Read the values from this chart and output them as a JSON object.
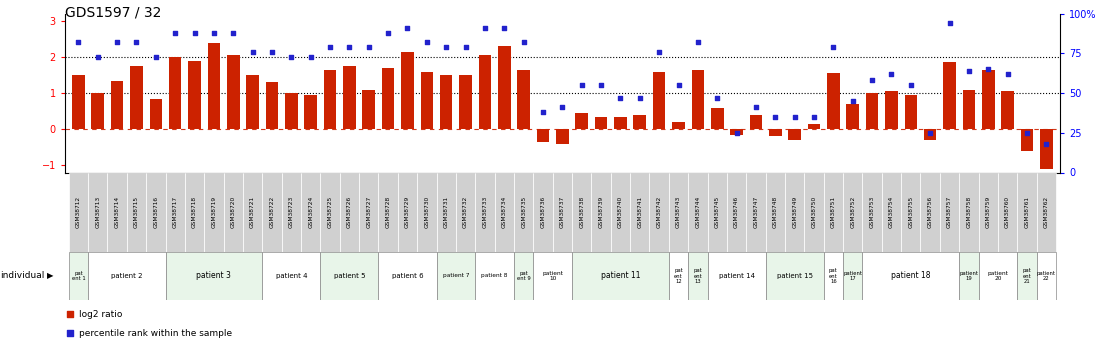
{
  "title": "GDS1597 / 32",
  "samples": [
    "GSM38712",
    "GSM38713",
    "GSM38714",
    "GSM38715",
    "GSM38716",
    "GSM38717",
    "GSM38718",
    "GSM38719",
    "GSM38720",
    "GSM38721",
    "GSM38722",
    "GSM38723",
    "GSM38724",
    "GSM38725",
    "GSM38726",
    "GSM38727",
    "GSM38728",
    "GSM38729",
    "GSM38730",
    "GSM38731",
    "GSM38732",
    "GSM38733",
    "GSM38734",
    "GSM38735",
    "GSM38736",
    "GSM38737",
    "GSM38738",
    "GSM38739",
    "GSM38740",
    "GSM38741",
    "GSM38742",
    "GSM38743",
    "GSM38744",
    "GSM38745",
    "GSM38746",
    "GSM38747",
    "GSM38748",
    "GSM38749",
    "GSM38750",
    "GSM38751",
    "GSM38752",
    "GSM38753",
    "GSM38754",
    "GSM38755",
    "GSM38756",
    "GSM38757",
    "GSM38758",
    "GSM38759",
    "GSM38760",
    "GSM38761",
    "GSM38762"
  ],
  "log2_ratio": [
    1.5,
    1.0,
    1.35,
    1.75,
    0.85,
    2.0,
    1.9,
    2.4,
    2.05,
    1.5,
    1.3,
    1.0,
    0.95,
    1.65,
    1.75,
    1.1,
    1.7,
    2.15,
    1.6,
    1.5,
    1.5,
    2.05,
    2.3,
    1.65,
    -0.35,
    -0.4,
    0.45,
    0.35,
    0.35,
    0.4,
    1.6,
    0.2,
    1.65,
    0.6,
    -0.15,
    0.4,
    -0.2,
    -0.3,
    0.15,
    1.55,
    0.7,
    1.0,
    1.05,
    0.95,
    -0.3,
    1.85,
    1.1,
    1.65,
    1.05,
    -0.6,
    -1.1
  ],
  "percentile": [
    82,
    73,
    82,
    82,
    73,
    88,
    88,
    88,
    88,
    76,
    76,
    73,
    73,
    79,
    79,
    79,
    88,
    91,
    82,
    79,
    79,
    91,
    91,
    82,
    38,
    41,
    55,
    55,
    47,
    47,
    76,
    55,
    82,
    47,
    25,
    41,
    35,
    35,
    35,
    79,
    45,
    58,
    62,
    55,
    25,
    94,
    64,
    65,
    62,
    25,
    18
  ],
  "patients": [
    {
      "label": "pat\nent 1",
      "start": 0,
      "end": 0,
      "color": "#e8f5e9"
    },
    {
      "label": "patient 2",
      "start": 1,
      "end": 4,
      "color": "#ffffff"
    },
    {
      "label": "patient 3",
      "start": 5,
      "end": 9,
      "color": "#e8f5e9"
    },
    {
      "label": "patient 4",
      "start": 10,
      "end": 12,
      "color": "#ffffff"
    },
    {
      "label": "patient 5",
      "start": 13,
      "end": 15,
      "color": "#e8f5e9"
    },
    {
      "label": "patient 6",
      "start": 16,
      "end": 18,
      "color": "#ffffff"
    },
    {
      "label": "patient 7",
      "start": 19,
      "end": 20,
      "color": "#e8f5e9"
    },
    {
      "label": "patient 8",
      "start": 21,
      "end": 22,
      "color": "#ffffff"
    },
    {
      "label": "pat\nent 9",
      "start": 23,
      "end": 23,
      "color": "#e8f5e9"
    },
    {
      "label": "patient\n10",
      "start": 24,
      "end": 25,
      "color": "#ffffff"
    },
    {
      "label": "patient 11",
      "start": 26,
      "end": 30,
      "color": "#e8f5e9"
    },
    {
      "label": "pat\nent\n12",
      "start": 31,
      "end": 31,
      "color": "#ffffff"
    },
    {
      "label": "pat\nent\n13",
      "start": 32,
      "end": 32,
      "color": "#e8f5e9"
    },
    {
      "label": "patient 14",
      "start": 33,
      "end": 35,
      "color": "#ffffff"
    },
    {
      "label": "patient 15",
      "start": 36,
      "end": 38,
      "color": "#e8f5e9"
    },
    {
      "label": "pat\nent\n16",
      "start": 39,
      "end": 39,
      "color": "#ffffff"
    },
    {
      "label": "patient\n17",
      "start": 40,
      "end": 40,
      "color": "#e8f5e9"
    },
    {
      "label": "patient 18",
      "start": 41,
      "end": 45,
      "color": "#ffffff"
    },
    {
      "label": "patient\n19",
      "start": 46,
      "end": 46,
      "color": "#e8f5e9"
    },
    {
      "label": "patient\n20",
      "start": 47,
      "end": 48,
      "color": "#ffffff"
    },
    {
      "label": "pat\nent\n21",
      "start": 49,
      "end": 49,
      "color": "#e8f5e9"
    },
    {
      "label": "patient\n22",
      "start": 50,
      "end": 50,
      "color": "#ffffff"
    }
  ],
  "bar_color": "#cc2200",
  "dot_color": "#2222cc",
  "ylim": [
    -1.2,
    3.2
  ],
  "yticks": [
    -1,
    0,
    1,
    2,
    3
  ],
  "right_yticks": [
    0,
    25,
    50,
    75,
    100
  ],
  "right_ylabels": [
    "0",
    "25",
    "50",
    "75",
    "100%"
  ],
  "hline_dotted": [
    1.0,
    2.0
  ],
  "hline_dashed_red": 0.0,
  "title_fontsize": 10,
  "bar_width": 0.65,
  "gsm_bg_color": "#d0d0d0",
  "legend_sq_color_red": "#cc2200",
  "legend_sq_color_blue": "#2222cc"
}
